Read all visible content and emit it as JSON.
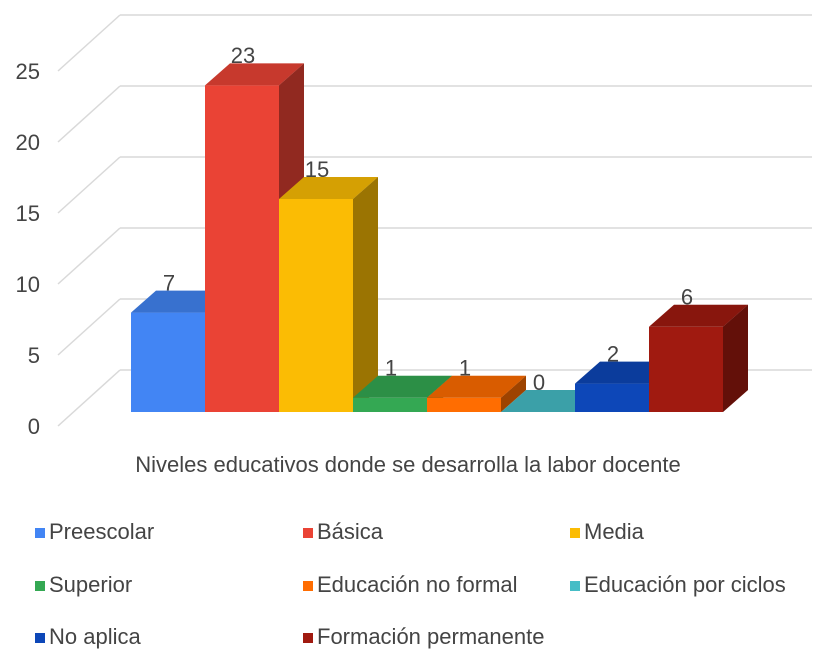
{
  "chart_data": {
    "type": "bar",
    "categories": [
      "Niveles educativos donde se desarrolla la labor docente"
    ],
    "series": [
      {
        "name": "Preescolar",
        "color": "#4285f4",
        "values": [
          7
        ]
      },
      {
        "name": "Básica",
        "color": "#ea4335",
        "values": [
          23
        ]
      },
      {
        "name": "Media",
        "color": "#fbbc04",
        "values": [
          15
        ]
      },
      {
        "name": "Superior",
        "color": "#34a853",
        "values": [
          1
        ]
      },
      {
        "name": "Educación no formal",
        "color": "#ff6d01",
        "values": [
          1
        ]
      },
      {
        "name": "Educación por ciclos",
        "color": "#46bdc6",
        "values": [
          0
        ]
      },
      {
        "name": "No aplica",
        "color": "#0d47b8",
        "values": [
          2
        ]
      },
      {
        "name": "Formación permanente",
        "color": "#a01a10",
        "values": [
          6
        ]
      }
    ],
    "ylim": [
      0,
      25
    ],
    "yticks": [
      0,
      5,
      10,
      15,
      20,
      25
    ],
    "grid": true,
    "legend": "bottom"
  }
}
